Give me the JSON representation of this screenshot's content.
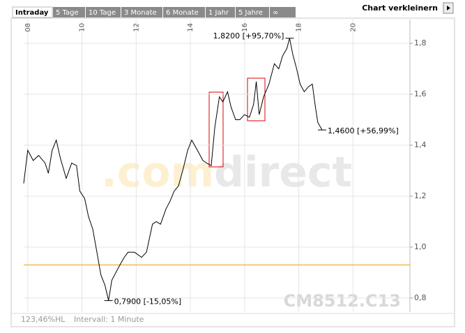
{
  "tabs": [
    "Intraday",
    "5 Tage",
    "10 Tage",
    "3 Monate",
    "6 Monate",
    "1 Jahr",
    "5 Jahre",
    "∞"
  ],
  "button": "Chart verkleinern",
  "watermark": [
    ".com",
    "direct"
  ],
  "code": "CM8512.C13",
  "footer": [
    "123,46%HL",
    "Intervall: 1 Minute"
  ],
  "chart_data": {
    "type": "line",
    "x": [
      7.85,
      8.0,
      8.2,
      8.4,
      8.64,
      8.76,
      8.9,
      9.05,
      9.2,
      9.42,
      9.62,
      9.8,
      9.92,
      10.1,
      10.24,
      10.4,
      10.55,
      10.7,
      10.85,
      10.98,
      11.1,
      11.25,
      11.4,
      11.56,
      11.7,
      11.94,
      12.2,
      12.38,
      12.6,
      12.74,
      12.9,
      13.1,
      13.25,
      13.4,
      13.56,
      13.74,
      13.9,
      14.05,
      14.26,
      14.46,
      14.6,
      14.77,
      14.9,
      15.07,
      15.2,
      15.37,
      15.5,
      15.67,
      15.82,
      16.0,
      16.18,
      16.33,
      16.43,
      16.54,
      16.7,
      16.9,
      17.1,
      17.26,
      17.4,
      17.56,
      17.66,
      17.77,
      17.92,
      18.05,
      18.2,
      18.36,
      18.5,
      18.6,
      18.7,
      18.86
    ],
    "series": [
      {
        "color": "#000000",
        "values": [
          1.25,
          1.38,
          1.34,
          1.36,
          1.33,
          1.29,
          1.38,
          1.42,
          1.35,
          1.27,
          1.33,
          1.32,
          1.22,
          1.19,
          1.12,
          1.07,
          0.98,
          0.89,
          0.85,
          0.79,
          0.87,
          0.9,
          0.93,
          0.96,
          0.98,
          0.98,
          0.96,
          0.98,
          1.09,
          1.1,
          1.09,
          1.15,
          1.18,
          1.22,
          1.24,
          1.31,
          1.38,
          1.42,
          1.38,
          1.34,
          1.33,
          1.32,
          1.47,
          1.59,
          1.57,
          1.61,
          1.55,
          1.5,
          1.5,
          1.52,
          1.51,
          1.56,
          1.65,
          1.52,
          1.59,
          1.64,
          1.72,
          1.7,
          1.75,
          1.78,
          1.82,
          1.76,
          1.7,
          1.64,
          1.61,
          1.63,
          1.64,
          1.56,
          1.49,
          1.46
        ]
      }
    ],
    "xlim": [
      7.85,
      22.1
    ],
    "xticks": [
      {
        "value": 8,
        "label": "08"
      },
      10,
      12,
      14,
      16,
      18,
      20
    ],
    "ylim": [
      0.745,
      1.866
    ],
    "yticks": [
      {
        "value": 0.8,
        "label": "0,8"
      },
      {
        "value": 1.0,
        "label": "1,0"
      },
      {
        "value": 1.2,
        "label": "1,2"
      },
      {
        "value": 1.4,
        "label": "1,4"
      },
      {
        "value": 1.6,
        "label": "1,6"
      },
      {
        "value": 1.8,
        "label": "1,8"
      }
    ],
    "grid": true,
    "reference_line": {
      "value": 0.93,
      "color": "#f0b030"
    },
    "annotations": [
      {
        "text": "1,8200 [+95,70%]",
        "x": 17.66,
        "y": 1.82
      },
      {
        "text": "1,4600 [+56,99%]",
        "x": 18.86,
        "y": 1.46
      },
      {
        "text": "0,7900 [-15,05%]",
        "x": 10.98,
        "y": 0.79
      }
    ]
  }
}
